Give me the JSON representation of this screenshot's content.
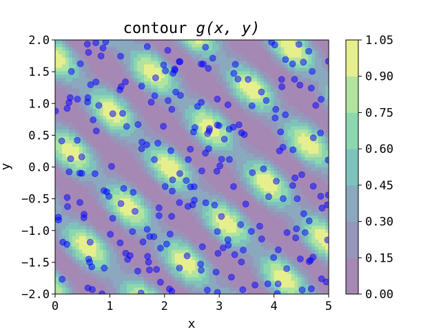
{
  "chart_data": {
    "type": "contour",
    "title_prefix": "contour ",
    "title_math": "g(x, y)",
    "xlabel": "x",
    "ylabel": "y",
    "xlim": [
      0,
      5
    ],
    "ylim": [
      -2,
      2
    ],
    "xticks": [
      "0",
      "1",
      "2",
      "3",
      "4",
      "5"
    ],
    "yticks": [
      "2.0",
      "1.5",
      "1.0",
      "0.5",
      "0.0",
      "−0.5",
      "−1.0",
      "−1.5",
      "−2.0"
    ],
    "colorbar": {
      "levels": [
        0.0,
        0.15,
        0.3,
        0.45,
        0.6,
        0.75,
        0.9,
        1.05
      ],
      "tick_labels": [
        "1.05",
        "0.90",
        "0.75",
        "0.60",
        "0.45",
        "0.30",
        "0.15",
        "0.00"
      ],
      "colors": [
        "#a688b4",
        "#9696ba",
        "#8aa8be",
        "#7ec3bb",
        "#8dd7b0",
        "#b2e39f",
        "#e6ef8d"
      ]
    },
    "scatter": {
      "color": "#0000ff",
      "alpha": 0.5,
      "n_points": 250
    }
  }
}
